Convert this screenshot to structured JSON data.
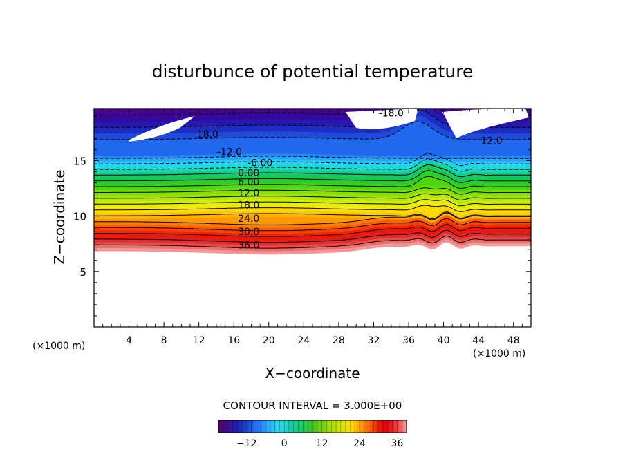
{
  "chart_data": {
    "type": "contour",
    "title": "disturbunce of potential temperature",
    "xlabel": "X−coordinate",
    "ylabel": "Z−coordinate",
    "xlim": [
      0,
      50
    ],
    "ylim": [
      0,
      19.7
    ],
    "x_ticks": [
      4,
      8,
      12,
      16,
      20,
      24,
      28,
      32,
      36,
      40,
      44,
      48
    ],
    "y_ticks": [
      5,
      10,
      15
    ],
    "x_unit": "(×1000 m)",
    "y_unit": "(×1000 m)",
    "contour_interval_text": "CONTOUR INTERVAL = 3.000E+00",
    "contour_interval": 3.0,
    "colorbar": {
      "min": -21,
      "max": 39,
      "ticks": [
        -12,
        0,
        12,
        24,
        36
      ]
    },
    "contour_levels": [
      -18,
      -12,
      -6,
      0,
      6,
      12,
      18,
      24,
      30,
      36
    ],
    "contour_labels": [
      {
        "text": "-18.0",
        "x": 34,
        "z": 19.3
      },
      {
        "text": "18.0",
        "x": 13,
        "z": 17.4
      },
      {
        "text": "-12.0",
        "x": 15.5,
        "z": 15.8
      },
      {
        "text": "12.0",
        "x": 45.5,
        "z": 16.8
      },
      {
        "text": "-6.00",
        "x": 19,
        "z": 14.8
      },
      {
        "text": "0.00",
        "x": 17.7,
        "z": 13.9
      },
      {
        "text": "6.00",
        "x": 17.7,
        "z": 13.1
      },
      {
        "text": "12.0",
        "x": 17.7,
        "z": 12.1
      },
      {
        "text": "18.0",
        "x": 17.7,
        "z": 11.0
      },
      {
        "text": "24.0",
        "x": 17.7,
        "z": 9.8
      },
      {
        "text": "30.0",
        "x": 17.7,
        "z": 8.6
      },
      {
        "text": "36.0",
        "x": 17.7,
        "z": 7.4
      }
    ]
  }
}
